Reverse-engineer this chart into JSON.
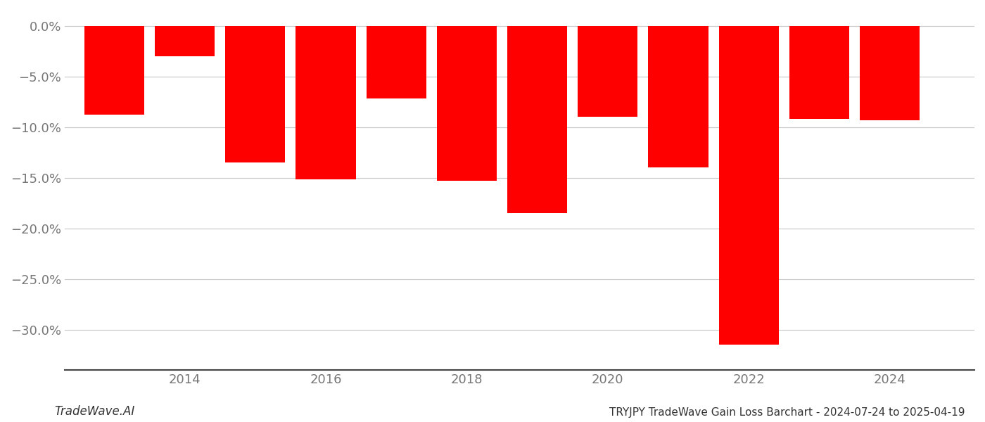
{
  "years": [
    2013,
    2014,
    2015,
    2016,
    2017,
    2018,
    2019,
    2020,
    2021,
    2022,
    2023,
    2024
  ],
  "values": [
    -8.8,
    -3.0,
    -13.5,
    -15.2,
    -7.2,
    -15.3,
    -18.5,
    -9.0,
    -14.0,
    -31.5,
    -9.2,
    -9.3
  ],
  "bar_color": "#ff0000",
  "bar_width": 0.85,
  "ylim": [
    -34,
    1.5
  ],
  "yticks": [
    0.0,
    -5.0,
    -10.0,
    -15.0,
    -20.0,
    -25.0,
    -30.0
  ],
  "xlabel": "",
  "ylabel": "",
  "title": "",
  "footer_left": "TradeWave.AI",
  "footer_right": "TRYJPY TradeWave Gain Loss Barchart - 2024-07-24 to 2025-04-19",
  "grid_color": "#c8c8c8",
  "background_color": "#ffffff",
  "tick_color": "#777777",
  "spine_color": "#444444",
  "xlim_left": 2012.3,
  "xlim_right": 2025.2
}
